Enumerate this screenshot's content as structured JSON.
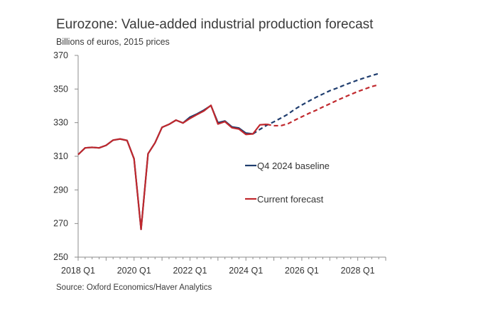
{
  "chart_data": {
    "type": "line",
    "title": "Eurozone: Value-added industrial production forecast",
    "subtitle": "Billions of euros, 2015 prices",
    "source": "Source: Oxford Economics/Haver Analytics",
    "ylim": [
      250,
      370
    ],
    "yticks": [
      250,
      270,
      290,
      310,
      330,
      350,
      370
    ],
    "xlim": [
      "2018 Q1",
      "2029 Q1"
    ],
    "xticks": [
      "2018 Q1",
      "2020 Q1",
      "2022 Q1",
      "2024 Q1",
      "2026 Q1",
      "2028 Q1"
    ],
    "grid": false,
    "legend_position": "center-right",
    "series": [
      {
        "name": "Q4 2024 baseline",
        "color": "#1f3d6e",
        "data": [
          [
            "2018 Q1",
            311
          ],
          [
            "2018 Q2",
            315
          ],
          [
            "2018 Q3",
            315.3
          ],
          [
            "2018 Q4",
            315
          ],
          [
            "2019 Q1",
            316.5
          ],
          [
            "2019 Q2",
            319.6
          ],
          [
            "2019 Q3",
            320.3
          ],
          [
            "2019 Q4",
            319.4
          ],
          [
            "2020 Q1",
            308.5
          ],
          [
            "2020 Q2",
            266.5
          ],
          [
            "2020 Q3",
            311.5
          ],
          [
            "2020 Q4",
            318
          ],
          [
            "2021 Q1",
            327.2
          ],
          [
            "2021 Q2",
            329
          ],
          [
            "2021 Q3",
            331.5
          ],
          [
            "2021 Q4",
            329.8
          ],
          [
            "2022 Q1",
            333.3
          ],
          [
            "2022 Q2",
            335.2
          ],
          [
            "2022 Q3",
            337.5
          ],
          [
            "2022 Q4",
            340.2
          ],
          [
            "2023 Q1",
            330
          ],
          [
            "2023 Q2",
            331
          ],
          [
            "2023 Q3",
            327.5
          ],
          [
            "2023 Q4",
            326.8
          ],
          [
            "2024 Q1",
            323.8
          ],
          [
            "2024 Q2",
            323.3
          ]
        ],
        "forecast": [
          [
            "2024 Q2",
            323.3
          ],
          [
            "2024 Q3",
            326
          ],
          [
            "2024 Q4",
            328.5
          ],
          [
            "2025 Q1",
            330.5
          ],
          [
            "2025 Q2",
            332.7
          ],
          [
            "2025 Q3",
            335
          ],
          [
            "2025 Q4",
            338
          ],
          [
            "2026 Q1",
            340.5
          ],
          [
            "2026 Q2",
            342.8
          ],
          [
            "2026 Q3",
            345
          ],
          [
            "2026 Q4",
            347
          ],
          [
            "2027 Q1",
            349
          ],
          [
            "2027 Q2",
            350.5
          ],
          [
            "2027 Q3",
            352.2
          ],
          [
            "2027 Q4",
            353.8
          ],
          [
            "2028 Q1",
            355.3
          ],
          [
            "2028 Q2",
            356.7
          ],
          [
            "2028 Q3",
            358
          ],
          [
            "2028 Q4",
            359.2
          ]
        ]
      },
      {
        "name": "Current forecast",
        "color": "#c0282d",
        "data": [
          [
            "2018 Q1",
            311
          ],
          [
            "2018 Q2",
            315
          ],
          [
            "2018 Q3",
            315.3
          ],
          [
            "2018 Q4",
            315
          ],
          [
            "2019 Q1",
            316.5
          ],
          [
            "2019 Q2",
            319.6
          ],
          [
            "2019 Q3",
            320.3
          ],
          [
            "2019 Q4",
            319.4
          ],
          [
            "2020 Q1",
            308.5
          ],
          [
            "2020 Q2",
            266.5
          ],
          [
            "2020 Q3",
            311.5
          ],
          [
            "2020 Q4",
            318
          ],
          [
            "2021 Q1",
            327.2
          ],
          [
            "2021 Q2",
            329
          ],
          [
            "2021 Q3",
            331.5
          ],
          [
            "2021 Q4",
            329.8
          ],
          [
            "2022 Q1",
            332.5
          ],
          [
            "2022 Q2",
            334.8
          ],
          [
            "2022 Q3",
            337
          ],
          [
            "2022 Q4",
            340.3
          ],
          [
            "2023 Q1",
            329.2
          ],
          [
            "2023 Q2",
            330.6
          ],
          [
            "2023 Q3",
            327
          ],
          [
            "2023 Q4",
            326.2
          ],
          [
            "2024 Q1",
            323
          ],
          [
            "2024 Q2",
            323.3
          ],
          [
            "2024 Q3",
            328.7
          ],
          [
            "2024 Q4",
            329
          ]
        ],
        "forecast": [
          [
            "2024 Q4",
            329
          ],
          [
            "2025 Q1",
            328.2
          ],
          [
            "2025 Q2",
            328.2
          ],
          [
            "2025 Q3",
            329.3
          ],
          [
            "2025 Q4",
            331.5
          ],
          [
            "2026 Q1",
            333.5
          ],
          [
            "2026 Q2",
            335.5
          ],
          [
            "2026 Q3",
            337.3
          ],
          [
            "2026 Q4",
            339.3
          ],
          [
            "2027 Q1",
            341.2
          ],
          [
            "2027 Q2",
            343.2
          ],
          [
            "2027 Q3",
            345
          ],
          [
            "2027 Q4",
            346.8
          ],
          [
            "2028 Q1",
            348.5
          ],
          [
            "2028 Q2",
            350
          ],
          [
            "2028 Q3",
            351.5
          ],
          [
            "2028 Q4",
            352.5
          ]
        ]
      }
    ]
  }
}
